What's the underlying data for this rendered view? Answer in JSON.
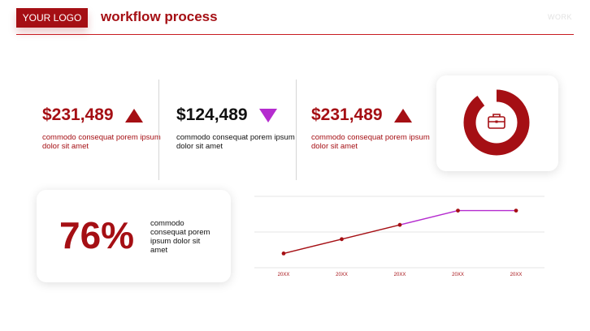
{
  "header": {
    "logo_label": "YOUR LOGO",
    "title": "workflow process",
    "section_tag": "WORK"
  },
  "stats": [
    {
      "value": "$231,489",
      "trend": "up",
      "description": "commodo consequat porem ipsum dolor sit amet"
    },
    {
      "value": "$124,489",
      "trend": "down",
      "description": "commodo consequat porem ipsum dolor sit amet"
    },
    {
      "value": "$231,489",
      "trend": "up",
      "description": "commodo consequat porem ipsum dolor sit amet"
    }
  ],
  "donut": {
    "icon": "briefcase-icon"
  },
  "percent_card": {
    "value": "76%",
    "description": "commodo consequat porem ipsum dolor sit amet"
  },
  "colors": {
    "accent": "#a50f14",
    "down_indicator": "#b52ccf",
    "grid": "#e6e6e6"
  },
  "chart_data": {
    "type": "line",
    "categories": [
      "20XX",
      "20XX",
      "20XX",
      "20XX",
      "20XX"
    ],
    "values": [
      2,
      4,
      6,
      8,
      8
    ]
  }
}
